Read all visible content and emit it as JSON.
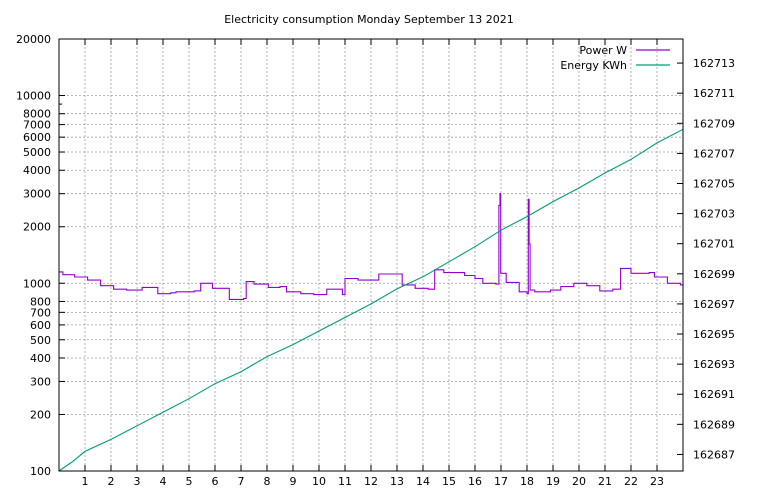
{
  "chart_data": {
    "type": "line",
    "title": "Electricity consumption Monday September 13 2021",
    "xlabel": "",
    "ylabel": "",
    "y2label": "",
    "grid": true,
    "legend_position": "top-right",
    "xlim": [
      0,
      24
    ],
    "x_ticks": [
      1,
      2,
      3,
      4,
      5,
      6,
      7,
      8,
      9,
      10,
      11,
      12,
      13,
      14,
      15,
      16,
      17,
      18,
      19,
      20,
      21,
      22,
      23
    ],
    "y_scale": "log",
    "ylim": [
      100,
      20000
    ],
    "y_ticks": [
      100,
      200,
      300,
      400,
      500,
      600,
      700,
      800,
      1000,
      2000,
      3000,
      4000,
      5000,
      6000,
      7000,
      8000,
      10000,
      20000
    ],
    "y2lim": [
      162685.9,
      162714.6
    ],
    "y2_ticks": [
      162687,
      162689,
      162691,
      162693,
      162695,
      162697,
      162699,
      162701,
      162703,
      162705,
      162707,
      162709,
      162711,
      162713
    ],
    "series": [
      {
        "name": "Power W",
        "axis": "y",
        "color": "#9400d3",
        "style": "steps",
        "points": [
          [
            0,
            1150
          ],
          [
            0.15,
            1110
          ],
          [
            0.6,
            1080
          ],
          [
            1.1,
            1040
          ],
          [
            1.6,
            970
          ],
          [
            2.1,
            930
          ],
          [
            2.6,
            920
          ],
          [
            3.2,
            950
          ],
          [
            3.8,
            880
          ],
          [
            4.3,
            890
          ],
          [
            4.5,
            900
          ],
          [
            5.2,
            910
          ],
          [
            5.45,
            1000
          ],
          [
            5.9,
            940
          ],
          [
            6.55,
            820
          ],
          [
            7.1,
            830
          ],
          [
            7.2,
            1020
          ],
          [
            7.5,
            990
          ],
          [
            8.05,
            950
          ],
          [
            8.5,
            960
          ],
          [
            8.75,
            900
          ],
          [
            9.3,
            880
          ],
          [
            9.8,
            870
          ],
          [
            10.3,
            930
          ],
          [
            10.9,
            870
          ],
          [
            11.0,
            1060
          ],
          [
            11.5,
            1040
          ],
          [
            12.3,
            1120
          ],
          [
            13.2,
            980
          ],
          [
            13.7,
            940
          ],
          [
            14.2,
            930
          ],
          [
            14.45,
            1180
          ],
          [
            14.8,
            1140
          ],
          [
            15.6,
            1100
          ],
          [
            16.0,
            1060
          ],
          [
            16.3,
            1000
          ],
          [
            16.8,
            990
          ],
          [
            16.92,
            2600
          ],
          [
            16.96,
            3000
          ],
          [
            16.99,
            1130
          ],
          [
            17.2,
            1010
          ],
          [
            17.7,
            900
          ],
          [
            18.0,
            880
          ],
          [
            18.05,
            2800
          ],
          [
            18.08,
            1620
          ],
          [
            18.12,
            920
          ],
          [
            18.3,
            900
          ],
          [
            18.9,
            920
          ],
          [
            19.3,
            960
          ],
          [
            19.8,
            1000
          ],
          [
            20.3,
            970
          ],
          [
            20.8,
            910
          ],
          [
            21.3,
            930
          ],
          [
            21.6,
            1200
          ],
          [
            22.0,
            1130
          ],
          [
            22.7,
            1140
          ],
          [
            22.9,
            1080
          ],
          [
            23.4,
            1000
          ],
          [
            23.9,
            980
          ],
          [
            24.0,
            980
          ]
        ]
      },
      {
        "name": "Energy KWh",
        "axis": "y2",
        "color": "#009e73",
        "style": "lines",
        "points": [
          [
            0,
            162685.9
          ],
          [
            0.5,
            162686.5
          ],
          [
            1,
            162687.2
          ],
          [
            2,
            162688.0
          ],
          [
            3,
            162688.9
          ],
          [
            4,
            162689.8
          ],
          [
            5,
            162690.7
          ],
          [
            6,
            162691.7
          ],
          [
            7,
            162692.5
          ],
          [
            8,
            162693.5
          ],
          [
            9,
            162694.3
          ],
          [
            10,
            162695.2
          ],
          [
            11,
            162696.1
          ],
          [
            12,
            162697.0
          ],
          [
            13,
            162698.0
          ],
          [
            14,
            162698.8
          ],
          [
            15,
            162699.8
          ],
          [
            16,
            162700.8
          ],
          [
            17,
            162701.9
          ],
          [
            18,
            162702.8
          ],
          [
            19,
            162703.8
          ],
          [
            20,
            162704.7
          ],
          [
            21,
            162705.7
          ],
          [
            22,
            162706.6
          ],
          [
            23,
            162707.7
          ],
          [
            24,
            162708.6
          ]
        ]
      }
    ]
  }
}
